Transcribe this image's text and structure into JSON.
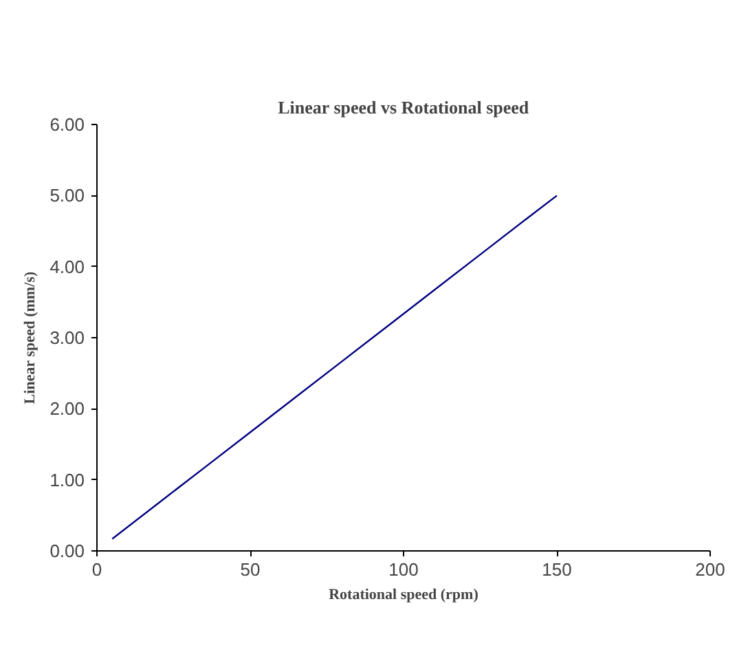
{
  "chart_data": {
    "type": "line",
    "title": "Linear speed vs Rotational speed",
    "xlabel": "Rotational speed (rpm)",
    "ylabel": "Linear speed (mm/s)",
    "x": [
      5,
      20,
      35,
      50,
      65,
      80,
      95,
      110,
      125,
      140,
      150
    ],
    "series": [
      {
        "color": "#000080",
        "values": [
          0.17,
          0.67,
          1.17,
          1.67,
          2.17,
          2.67,
          3.17,
          3.67,
          4.17,
          4.67,
          5.0
        ]
      }
    ],
    "xlim": [
      0,
      200
    ],
    "xticks": [
      0,
      50,
      100,
      150,
      200
    ],
    "ylim": [
      0,
      6
    ],
    "yticks": [
      {
        "value": 0,
        "label": "0.00"
      },
      {
        "value": 1,
        "label": "1.00"
      },
      {
        "value": 2,
        "label": "2.00"
      },
      {
        "value": 3,
        "label": "3.00"
      },
      {
        "value": 4,
        "label": "4.00"
      },
      {
        "value": 5,
        "label": "5.00"
      },
      {
        "value": 6,
        "label": "6.00"
      }
    ],
    "grid": false,
    "marker": "none",
    "line_style": "solid"
  }
}
